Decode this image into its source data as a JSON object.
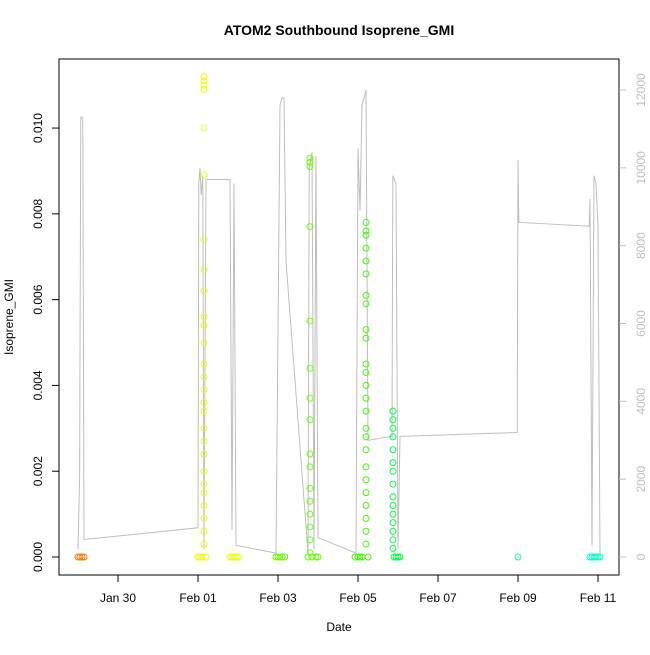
{
  "chart_data": {
    "type": "scatter",
    "title": "ATOM2 Southbound Isoprene_GMI",
    "x_label": "Date",
    "y_label": "Isoprene_GMI",
    "xlim": [
      28.525,
      42.525
    ],
    "ylim": [
      -0.00042,
      0.01161
    ],
    "y2lim": [
      -463,
      12797
    ],
    "xticks": [
      {
        "value": 30,
        "label": "Jan 30"
      },
      {
        "value": 32,
        "label": "Feb 01"
      },
      {
        "value": 34,
        "label": "Feb 03"
      },
      {
        "value": 36,
        "label": "Feb 05"
      },
      {
        "value": 38,
        "label": "Feb 07"
      },
      {
        "value": 40,
        "label": "Feb 09"
      },
      {
        "value": 42,
        "label": "Feb 11"
      }
    ],
    "yticks": [
      {
        "value": 0,
        "label": "0.000"
      },
      {
        "value": 0.002,
        "label": "0.002"
      },
      {
        "value": 0.004,
        "label": "0.004"
      },
      {
        "value": 0.006,
        "label": "0.006"
      },
      {
        "value": 0.008,
        "label": "0.008"
      },
      {
        "value": 0.01,
        "label": "0.010"
      }
    ],
    "y2ticks": [
      0,
      2000,
      4000,
      6000,
      8000,
      10000,
      12000
    ],
    "series": [
      {
        "color": "#ff7a00",
        "x": [
          29.0,
          29.05,
          29.1,
          29.15
        ],
        "values": [
          0,
          0,
          0,
          0
        ]
      },
      {
        "color": "#ebff00",
        "x": [
          32.0,
          32.05,
          32.1,
          32.2,
          32.15,
          32.15,
          32.15,
          32.15,
          32.15,
          32.15,
          32.15,
          32.15,
          32.15,
          32.15,
          32.15,
          32.15,
          32.15,
          32.15,
          32.15,
          32.15,
          32.15,
          32.15,
          32.15,
          32.15,
          32.15,
          32.15,
          32.15,
          32.15,
          32.15,
          32.15,
          32.15,
          32.8,
          32.85,
          32.9,
          32.95,
          33.0
        ],
        "values": [
          0,
          0,
          0,
          0,
          0.0112,
          0.0111,
          0.011,
          0.0109,
          0.01,
          0.0089,
          0.0074,
          0.0067,
          0.0062,
          0.0056,
          0.0054,
          0.005,
          0.0045,
          0.0042,
          0.0039,
          0.0036,
          0.0034,
          0.003,
          0.0027,
          0.0024,
          0.002,
          0.0017,
          0.0015,
          0.0012,
          0.0009,
          0.0006,
          0.0003,
          0,
          0,
          0,
          0,
          0
        ]
      },
      {
        "color": "#6aff00",
        "x": [
          33.95,
          34.0,
          34.05,
          34.1,
          34.17,
          34.75,
          34.8,
          34.8,
          34.8,
          34.8,
          34.8,
          34.8,
          34.8,
          34.8,
          34.8,
          34.8,
          34.8,
          34.8,
          34.8,
          34.8,
          34.8,
          34.8,
          34.85,
          34.95,
          35.0
        ],
        "values": [
          0,
          0,
          0,
          0,
          0,
          0,
          0.0093,
          0.0092,
          0.0091,
          0.0077,
          0.0055,
          0.0044,
          0.0037,
          0.0032,
          0.0024,
          0.0021,
          0.0016,
          0.0013,
          0.001,
          0.0007,
          0.0004,
          0.0001,
          0,
          0,
          0
        ]
      },
      {
        "color": "#3cff00",
        "x": [
          35.925,
          36.0,
          36.05,
          36.1,
          36.25,
          36.2,
          36.2,
          36.2,
          36.2,
          36.2,
          36.2,
          36.2,
          36.2,
          36.2,
          36.2,
          36.2,
          36.2,
          36.2,
          36.2,
          36.2,
          36.2,
          36.2,
          36.2,
          36.2,
          36.2,
          36.2,
          36.2,
          36.2,
          36.2,
          36.2
        ],
        "values": [
          0,
          0,
          0,
          0,
          0,
          0.0078,
          0.0076,
          0.0075,
          0.0072,
          0.0069,
          0.0066,
          0.0061,
          0.0059,
          0.0053,
          0.0051,
          0.0045,
          0.0043,
          0.004,
          0.0037,
          0.0034,
          0.003,
          0.0028,
          0.0025,
          0.0021,
          0.0018,
          0.0015,
          0.0012,
          0.0009,
          0.0006,
          0.0003
        ]
      },
      {
        "color": "#00ff40",
        "x": [
          36.875,
          36.875,
          36.875,
          36.875,
          36.875,
          36.875,
          36.875,
          36.875,
          36.875,
          36.875,
          36.875,
          36.875,
          36.875,
          36.875,
          36.875,
          36.9,
          36.95,
          37.0,
          37.05
        ],
        "values": [
          0.0034,
          0.0032,
          0.003,
          0.0028,
          0.0025,
          0.0022,
          0.002,
          0.0017,
          0.0014,
          0.0012,
          0.001,
          0.0008,
          0.0006,
          0.0004,
          0.0002,
          0,
          0,
          0,
          0
        ]
      },
      {
        "color": "#00ffc8",
        "x": [
          40.0,
          41.8,
          41.85,
          41.9,
          41.95,
          42.0,
          42.05
        ],
        "values": [
          0,
          0,
          0,
          0,
          0,
          0,
          0
        ]
      },
      {
        "type": "line",
        "axis": "y2",
        "color": "#bebebe",
        "x": [
          29.0,
          29.04,
          29.07,
          29.12,
          29.15,
          32.0,
          32.02,
          32.05,
          32.08,
          32.12,
          32.15,
          32.2,
          32.8,
          32.85,
          32.9,
          32.95,
          33.95,
          34.05,
          34.1,
          34.15,
          34.2,
          34.75,
          34.78,
          34.85,
          34.9,
          34.95,
          35.0,
          35.95,
          36.0,
          36.05,
          36.1,
          36.2,
          36.25,
          36.85,
          36.87,
          36.95,
          37.0,
          37.05,
          39.98,
          40.0,
          40.02,
          41.78,
          41.8,
          41.85,
          41.9,
          41.95,
          42.0,
          42.05
        ],
        "values": [
          200,
          2100,
          11300,
          11300,
          450,
          750,
          9600,
          10000,
          9300,
          9800,
          200,
          9700,
          9700,
          700,
          9600,
          300,
          100,
          11600,
          11800,
          11800,
          7600,
          100,
          10000,
          10400,
          200,
          10300,
          500,
          100,
          10500,
          8900,
          11600,
          12000,
          3000,
          3100,
          9800,
          9600,
          200,
          3100,
          3200,
          10200,
          8600,
          8500,
          9200,
          300,
          9800,
          9600,
          8500,
          100
        ]
      }
    ]
  }
}
